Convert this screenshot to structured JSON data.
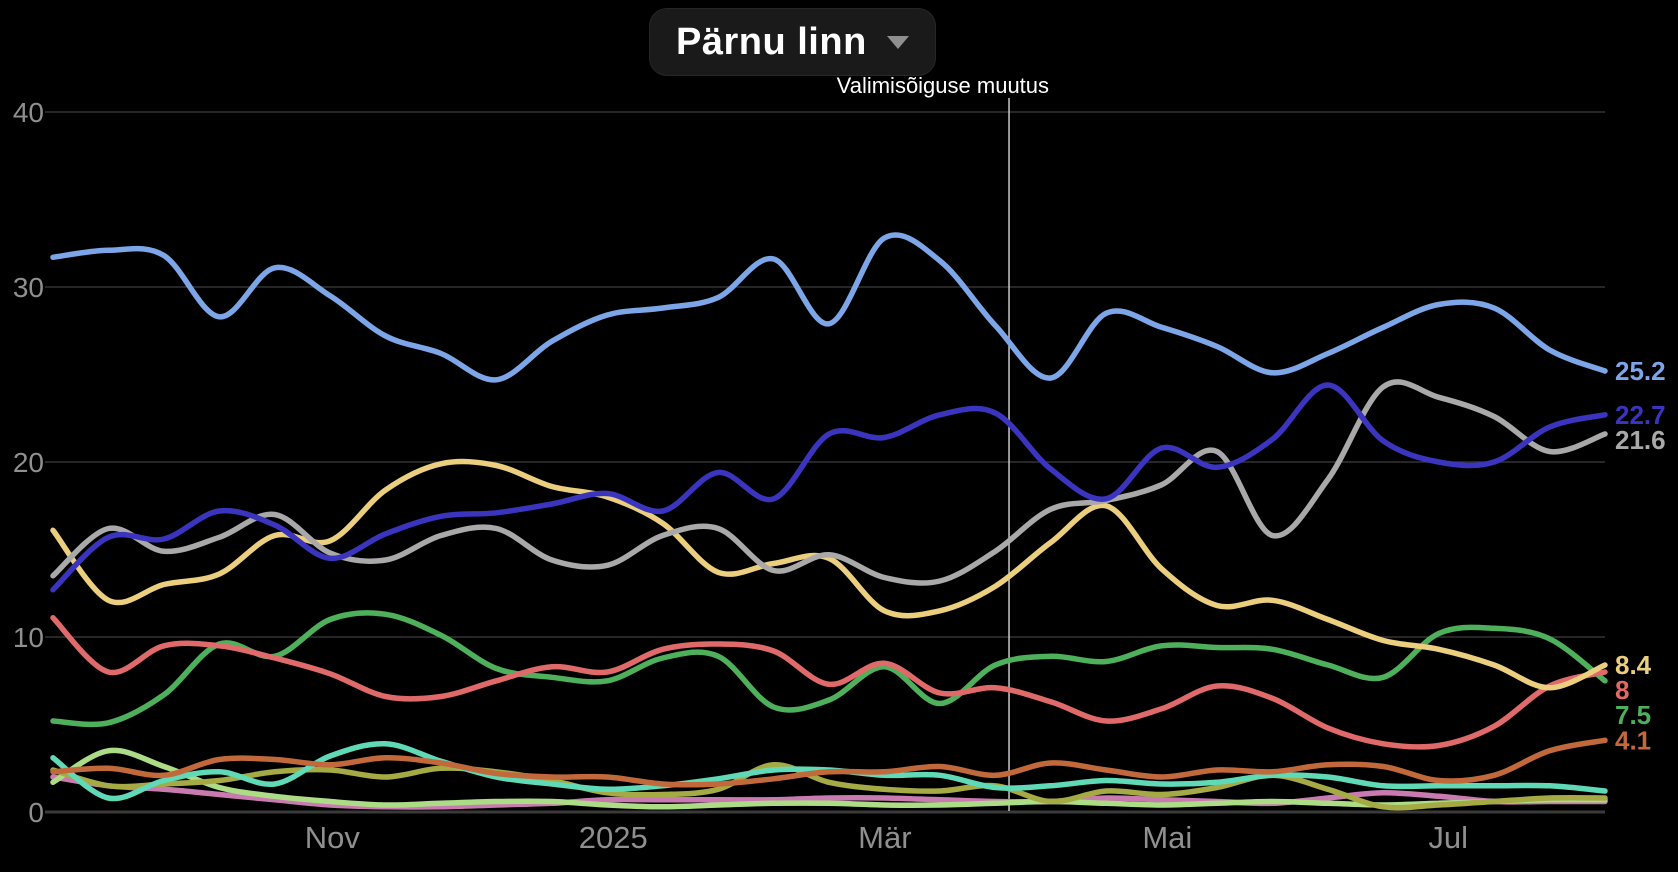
{
  "header": {
    "region_label": "Pärnu linn",
    "dropdown_icon": "caret-down"
  },
  "annotation_label": "Valimisõiguse muutus",
  "chart_data": {
    "type": "line",
    "title": "Pärnu linn",
    "grid": true,
    "legend_position": "none",
    "annotation": {
      "label": "Valimisõiguse muutus",
      "x_fraction": 0.616
    },
    "x_axis": {
      "tick_labels": [
        {
          "label": "Nov",
          "f": 0.18
        },
        {
          "label": "2025",
          "f": 0.361
        },
        {
          "label": "Mär",
          "f": 0.536
        },
        {
          "label": "Mai",
          "f": 0.718
        },
        {
          "label": "Jul",
          "f": 0.899
        }
      ]
    },
    "y_axis": {
      "ticks": [
        0,
        10,
        20,
        30,
        40
      ],
      "range": [
        0,
        40
      ]
    },
    "series": [
      {
        "name": "pink",
        "color": "#c97ab1",
        "end_label": null,
        "values": [
          2.0,
          1.5,
          1.3,
          1.0,
          0.7,
          0.4,
          0.3,
          0.3,
          0.4,
          0.5,
          0.7,
          0.7,
          0.7,
          0.7,
          0.8,
          0.8,
          0.7,
          0.6,
          0.6,
          0.8,
          0.7,
          0.6,
          0.5,
          0.8,
          1.1,
          0.9,
          0.6,
          0.6,
          0.6
        ]
      },
      {
        "name": "light-green",
        "color": "#acdc86",
        "end_label": null,
        "values": [
          1.7,
          3.5,
          2.6,
          1.4,
          0.9,
          0.6,
          0.4,
          0.5,
          0.6,
          0.6,
          0.4,
          0.3,
          0.4,
          0.5,
          0.5,
          0.4,
          0.4,
          0.5,
          0.6,
          0.5,
          0.4,
          0.5,
          0.6,
          0.5,
          0.4,
          0.5,
          0.6,
          0.7,
          0.7
        ]
      },
      {
        "name": "olive",
        "color": "#a5aa45",
        "end_label": null,
        "values": [
          2.4,
          1.5,
          1.6,
          1.8,
          2.3,
          2.4,
          2.0,
          2.5,
          2.3,
          1.8,
          1.1,
          1.0,
          1.3,
          2.7,
          1.7,
          1.3,
          1.2,
          1.5,
          0.6,
          1.2,
          1.0,
          1.4,
          2.1,
          1.3,
          0.3,
          0.4,
          0.6,
          0.8,
          0.8
        ]
      },
      {
        "name": "teal",
        "color": "#5fd9b6",
        "end_label": null,
        "values": [
          3.1,
          0.8,
          1.8,
          2.3,
          1.6,
          3.2,
          3.9,
          2.9,
          2.0,
          1.6,
          1.3,
          1.5,
          1.9,
          2.4,
          2.4,
          2.1,
          2.1,
          1.4,
          1.5,
          1.8,
          1.6,
          1.7,
          2.1,
          2.0,
          1.5,
          1.5,
          1.5,
          1.5,
          1.2
        ]
      },
      {
        "name": "orange",
        "color": "#c2693c",
        "end_label": "4.1",
        "values": [
          2.3,
          2.5,
          2.1,
          3.0,
          3.0,
          2.7,
          3.1,
          2.8,
          2.2,
          2.0,
          2.0,
          1.6,
          1.6,
          1.9,
          2.3,
          2.3,
          2.6,
          2.1,
          2.8,
          2.4,
          2.0,
          2.4,
          2.3,
          2.7,
          2.6,
          1.8,
          2.1,
          3.5,
          4.1
        ]
      },
      {
        "name": "green",
        "color": "#4eb05a",
        "end_label": "7.5",
        "values": [
          5.2,
          5.1,
          6.7,
          9.6,
          8.9,
          11.0,
          11.3,
          10.1,
          8.2,
          7.7,
          7.5,
          8.8,
          8.9,
          6.0,
          6.4,
          8.3,
          6.2,
          8.4,
          8.9,
          8.6,
          9.5,
          9.4,
          9.3,
          8.4,
          7.7,
          10.2,
          10.5,
          9.9,
          7.5
        ]
      },
      {
        "name": "red",
        "color": "#e06a6a",
        "end_label": "8",
        "values": [
          11.1,
          8.0,
          9.5,
          9.5,
          8.8,
          7.9,
          6.6,
          6.6,
          7.5,
          8.3,
          8.0,
          9.3,
          9.6,
          9.2,
          7.3,
          8.5,
          6.8,
          7.1,
          6.3,
          5.2,
          5.9,
          7.2,
          6.5,
          4.8,
          3.9,
          3.8,
          4.9,
          7.2,
          8.0
        ]
      },
      {
        "name": "yellow",
        "color": "#ebcf7f",
        "end_label": "8.4",
        "values": [
          16.1,
          12.1,
          13.0,
          13.6,
          15.8,
          15.5,
          18.4,
          19.9,
          19.8,
          18.6,
          18.0,
          16.5,
          13.7,
          14.2,
          14.5,
          11.5,
          11.5,
          12.9,
          15.4,
          17.5,
          13.9,
          11.8,
          12.1,
          11.0,
          9.8,
          9.3,
          8.4,
          7.1,
          8.4
        ]
      },
      {
        "name": "gray",
        "color": "#a9a9a9",
        "end_label": "21.6",
        "values": [
          13.5,
          16.2,
          14.9,
          15.7,
          17.0,
          14.8,
          14.4,
          15.8,
          16.2,
          14.4,
          14.1,
          15.8,
          16.2,
          13.8,
          14.7,
          13.4,
          13.2,
          14.9,
          17.3,
          17.8,
          18.7,
          20.6,
          15.8,
          19.0,
          24.3,
          23.7,
          22.6,
          20.6,
          21.6
        ]
      },
      {
        "name": "dark-blue",
        "color": "#3b34bf",
        "end_label": "22.7",
        "values": [
          12.7,
          15.7,
          15.6,
          17.2,
          16.4,
          14.5,
          15.9,
          16.9,
          17.1,
          17.6,
          18.2,
          17.2,
          19.4,
          17.9,
          21.6,
          21.4,
          22.7,
          22.8,
          19.6,
          17.9,
          20.8,
          19.7,
          21.3,
          24.4,
          21.2,
          20.0,
          20.0,
          22.0,
          22.7
        ]
      },
      {
        "name": "light-blue",
        "color": "#7ca6e8",
        "end_label": "25.2",
        "values": [
          31.7,
          32.1,
          31.8,
          28.3,
          31.1,
          29.5,
          27.2,
          26.2,
          24.7,
          26.9,
          28.4,
          28.8,
          29.4,
          31.6,
          27.9,
          32.8,
          31.5,
          27.8,
          24.8,
          28.5,
          27.7,
          26.6,
          25.1,
          26.2,
          27.7,
          29.0,
          28.8,
          26.4,
          25.2
        ]
      }
    ]
  },
  "colors": {
    "background": "#000000",
    "gridline": "#3d3d3d",
    "axis_line": "#3a3a3a",
    "tick_label": "#8f8f8f",
    "annotation_line": "#c9c9c9",
    "title_text": "#ffffff",
    "title_pill_bg": "#1a1a1a"
  }
}
